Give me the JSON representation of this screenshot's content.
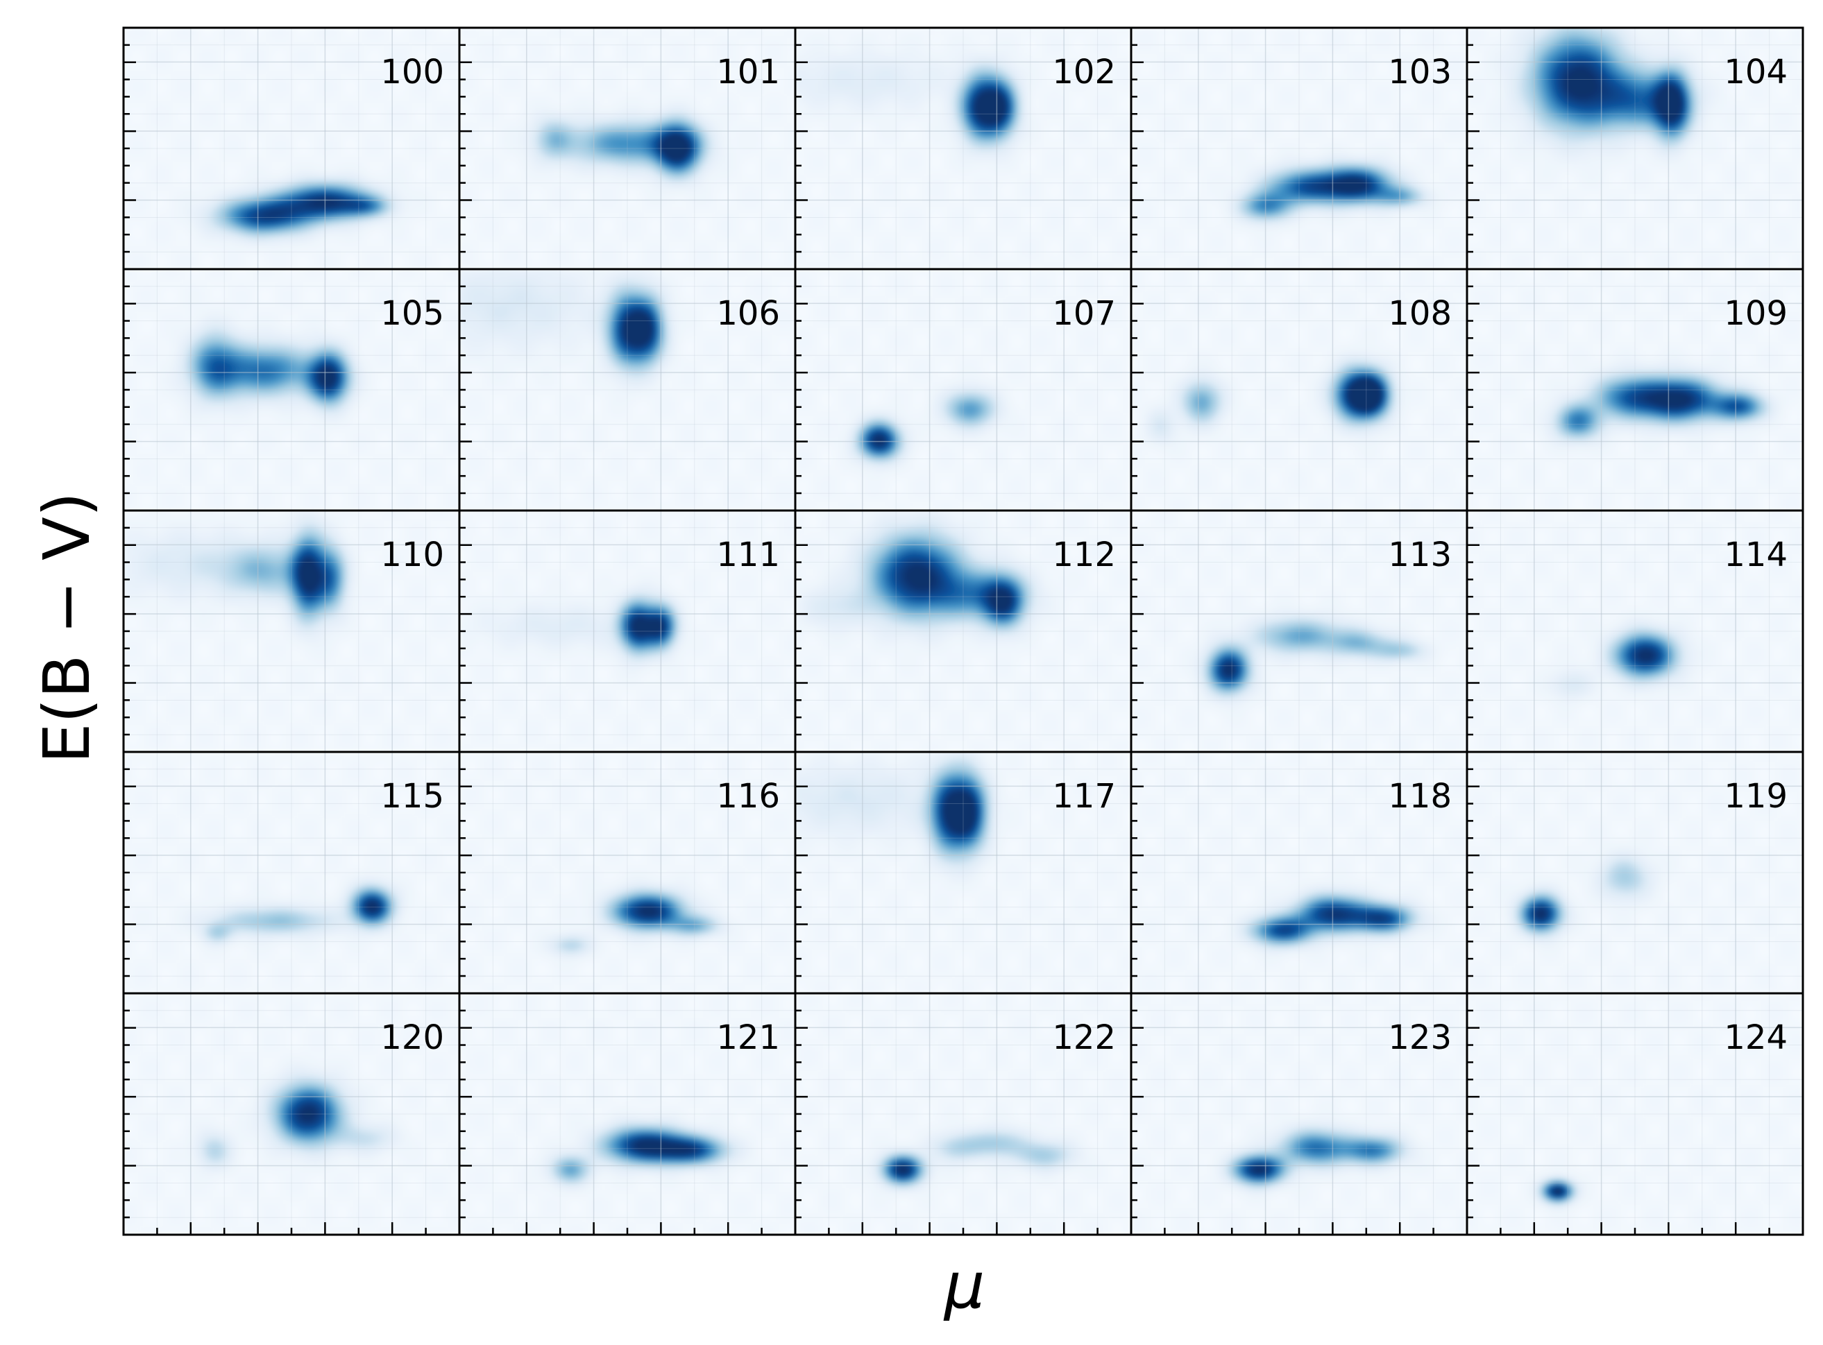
{
  "chart_data": {
    "type": "heatmap",
    "layout": {
      "rows": 5,
      "cols": 5
    },
    "xlabel": "μ",
    "ylabel": "E(B − V)",
    "colormap": [
      "#f7fbff",
      "#deebf7",
      "#9ecae1",
      "#4292c6",
      "#08519c",
      "#08306b"
    ],
    "grid": true,
    "tick_labels": false,
    "panels": [
      {
        "label": "100",
        "blobs": [
          [
            0.42,
            0.78,
            0.09,
            0.05,
            0.85
          ],
          [
            0.6,
            0.72,
            0.09,
            0.05,
            0.9
          ],
          [
            0.72,
            0.74,
            0.05,
            0.03,
            0.4
          ]
        ]
      },
      {
        "label": "101",
        "blobs": [
          [
            0.28,
            0.46,
            0.04,
            0.06,
            0.3
          ],
          [
            0.5,
            0.48,
            0.12,
            0.06,
            0.55
          ],
          [
            0.65,
            0.5,
            0.045,
            0.07,
            1.0
          ]
        ]
      },
      {
        "label": "102",
        "blobs": [
          [
            0.2,
            0.22,
            0.18,
            0.08,
            0.12
          ],
          [
            0.55,
            0.33,
            0.04,
            0.09,
            0.9
          ],
          [
            0.61,
            0.33,
            0.035,
            0.08,
            0.85
          ]
        ]
      },
      {
        "label": "103",
        "blobs": [
          [
            0.4,
            0.74,
            0.05,
            0.04,
            0.55
          ],
          [
            0.52,
            0.66,
            0.08,
            0.05,
            0.7
          ],
          [
            0.67,
            0.65,
            0.07,
            0.05,
            0.95
          ],
          [
            0.8,
            0.7,
            0.05,
            0.03,
            0.4
          ]
        ]
      },
      {
        "label": "104",
        "blobs": [
          [
            0.33,
            0.22,
            0.09,
            0.13,
            1.0
          ],
          [
            0.52,
            0.3,
            0.09,
            0.08,
            0.6
          ],
          [
            0.61,
            0.32,
            0.035,
            0.09,
            0.95
          ]
        ]
      },
      {
        "label": "105",
        "blobs": [
          [
            0.27,
            0.4,
            0.05,
            0.09,
            0.55
          ],
          [
            0.42,
            0.42,
            0.1,
            0.07,
            0.65
          ],
          [
            0.61,
            0.45,
            0.04,
            0.07,
            1.0
          ]
        ]
      },
      {
        "label": "106",
        "blobs": [
          [
            0.15,
            0.15,
            0.18,
            0.12,
            0.15
          ],
          [
            0.5,
            0.25,
            0.04,
            0.1,
            0.85
          ],
          [
            0.56,
            0.25,
            0.035,
            0.09,
            0.8
          ]
        ]
      },
      {
        "label": "107",
        "blobs": [
          [
            0.25,
            0.71,
            0.04,
            0.05,
            1.0
          ],
          [
            0.52,
            0.58,
            0.05,
            0.05,
            0.5
          ]
        ]
      },
      {
        "label": "108",
        "blobs": [
          [
            0.09,
            0.65,
            0.03,
            0.05,
            0.15
          ],
          [
            0.21,
            0.55,
            0.04,
            0.06,
            0.45
          ],
          [
            0.67,
            0.52,
            0.045,
            0.07,
            1.0
          ],
          [
            0.72,
            0.52,
            0.035,
            0.06,
            0.85
          ]
        ]
      },
      {
        "label": "109",
        "blobs": [
          [
            0.33,
            0.63,
            0.045,
            0.05,
            0.6
          ],
          [
            0.48,
            0.53,
            0.07,
            0.06,
            0.6
          ],
          [
            0.63,
            0.54,
            0.08,
            0.06,
            1.0
          ],
          [
            0.81,
            0.57,
            0.05,
            0.04,
            0.7
          ]
        ]
      },
      {
        "label": "110",
        "blobs": [
          [
            0.2,
            0.22,
            0.16,
            0.09,
            0.15
          ],
          [
            0.42,
            0.25,
            0.08,
            0.07,
            0.35
          ],
          [
            0.55,
            0.27,
            0.035,
            0.11,
            1.0
          ],
          [
            0.62,
            0.28,
            0.03,
            0.09,
            0.55
          ]
        ]
      },
      {
        "label": "111",
        "blobs": [
          [
            0.3,
            0.48,
            0.16,
            0.06,
            0.12
          ],
          [
            0.53,
            0.48,
            0.035,
            0.07,
            0.95
          ],
          [
            0.6,
            0.48,
            0.03,
            0.06,
            0.85
          ]
        ]
      },
      {
        "label": "112",
        "blobs": [
          [
            0.12,
            0.4,
            0.07,
            0.06,
            0.15
          ],
          [
            0.36,
            0.27,
            0.09,
            0.11,
            1.0
          ],
          [
            0.55,
            0.35,
            0.09,
            0.07,
            0.5
          ],
          [
            0.62,
            0.38,
            0.04,
            0.07,
            0.75
          ]
        ]
      },
      {
        "label": "113",
        "blobs": [
          [
            0.29,
            0.66,
            0.04,
            0.06,
            1.0
          ],
          [
            0.5,
            0.52,
            0.09,
            0.05,
            0.45
          ],
          [
            0.68,
            0.55,
            0.06,
            0.04,
            0.35
          ],
          [
            0.8,
            0.58,
            0.05,
            0.03,
            0.3
          ]
        ]
      },
      {
        "label": "114",
        "blobs": [
          [
            0.31,
            0.72,
            0.04,
            0.04,
            0.15
          ],
          [
            0.53,
            0.6,
            0.06,
            0.06,
            1.0
          ]
        ]
      },
      {
        "label": "115",
        "blobs": [
          [
            0.28,
            0.75,
            0.03,
            0.03,
            0.25
          ],
          [
            0.45,
            0.7,
            0.12,
            0.04,
            0.35
          ],
          [
            0.74,
            0.64,
            0.04,
            0.05,
            1.0
          ]
        ]
      },
      {
        "label": "116",
        "blobs": [
          [
            0.33,
            0.8,
            0.04,
            0.03,
            0.25
          ],
          [
            0.56,
            0.66,
            0.07,
            0.05,
            1.0
          ],
          [
            0.7,
            0.72,
            0.05,
            0.03,
            0.4
          ]
        ]
      },
      {
        "label": "117",
        "blobs": [
          [
            0.18,
            0.2,
            0.18,
            0.1,
            0.15
          ],
          [
            0.46,
            0.25,
            0.04,
            0.11,
            0.9
          ],
          [
            0.52,
            0.25,
            0.035,
            0.1,
            0.85
          ]
        ]
      },
      {
        "label": "118",
        "blobs": [
          [
            0.45,
            0.74,
            0.06,
            0.04,
            0.8
          ],
          [
            0.6,
            0.67,
            0.07,
            0.05,
            0.9
          ],
          [
            0.75,
            0.69,
            0.06,
            0.04,
            0.8
          ]
        ]
      },
      {
        "label": "119",
        "blobs": [
          [
            0.22,
            0.67,
            0.04,
            0.05,
            1.0
          ],
          [
            0.47,
            0.52,
            0.05,
            0.06,
            0.3
          ]
        ]
      },
      {
        "label": "120",
        "blobs": [
          [
            0.27,
            0.65,
            0.035,
            0.05,
            0.25
          ],
          [
            0.55,
            0.5,
            0.065,
            0.08,
            1.0
          ],
          [
            0.72,
            0.6,
            0.06,
            0.04,
            0.2
          ]
        ]
      },
      {
        "label": "121",
        "blobs": [
          [
            0.33,
            0.73,
            0.04,
            0.04,
            0.45
          ],
          [
            0.55,
            0.63,
            0.08,
            0.05,
            0.95
          ],
          [
            0.69,
            0.65,
            0.07,
            0.04,
            0.75
          ]
        ]
      },
      {
        "label": "122",
        "blobs": [
          [
            0.32,
            0.73,
            0.04,
            0.04,
            1.0
          ],
          [
            0.48,
            0.64,
            0.05,
            0.04,
            0.25
          ],
          [
            0.6,
            0.62,
            0.06,
            0.04,
            0.3
          ],
          [
            0.74,
            0.67,
            0.06,
            0.04,
            0.3
          ]
        ]
      },
      {
        "label": "123",
        "blobs": [
          [
            0.38,
            0.73,
            0.05,
            0.04,
            1.0
          ],
          [
            0.55,
            0.64,
            0.07,
            0.05,
            0.65
          ],
          [
            0.72,
            0.65,
            0.06,
            0.04,
            0.6
          ]
        ]
      },
      {
        "label": "124",
        "blobs": [
          [
            0.27,
            0.82,
            0.03,
            0.03,
            1.0
          ]
        ]
      }
    ]
  }
}
